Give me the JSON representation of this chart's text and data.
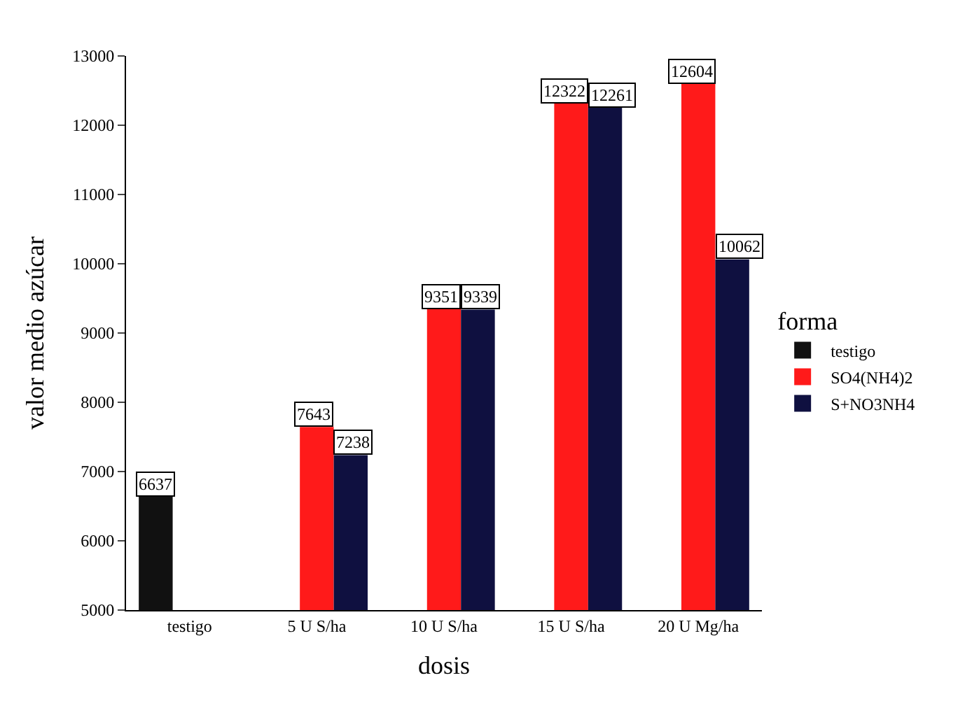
{
  "chart_data": {
    "type": "bar",
    "xlabel": "dosis",
    "ylabel": "valor medio azúcar",
    "legend_title": "forma",
    "categories": [
      "testigo",
      "5 U S/ha",
      "10 U S/ha",
      "15 U S/ha",
      "20 U Mg/ha"
    ],
    "series": [
      {
        "name": "testigo",
        "color": "#111111",
        "values": [
          6637,
          null,
          null,
          null,
          null
        ]
      },
      {
        "name": "SO4(NH4)2",
        "color": "#ff1a1a",
        "values": [
          null,
          7643,
          9351,
          12322,
          12604
        ]
      },
      {
        "name": "S+NO3NH4",
        "color": "#0f1040",
        "values": [
          null,
          7238,
          9339,
          12261,
          10062
        ]
      }
    ],
    "ylim": [
      5000,
      13000
    ],
    "yticks": [
      5000,
      6000,
      7000,
      8000,
      9000,
      10000,
      11000,
      12000,
      13000
    ],
    "data_labels": true,
    "legend": "right"
  }
}
